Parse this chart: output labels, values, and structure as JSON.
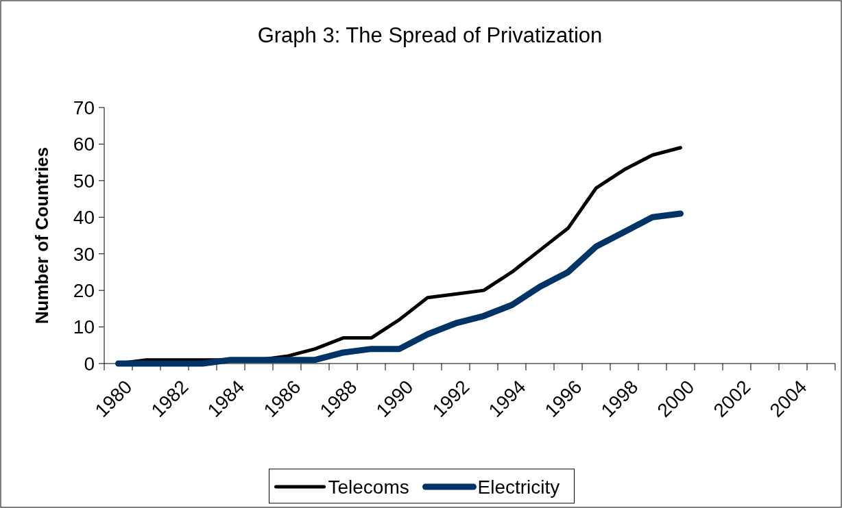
{
  "chart_data": {
    "type": "line",
    "title": "Graph 3: The Spread of Privatization",
    "ylabel": "Number of Countries",
    "categories": [
      "1980",
      null,
      "1982",
      null,
      "1984",
      null,
      "1986",
      null,
      "1988",
      null,
      "1990",
      null,
      "1992",
      null,
      "1994",
      null,
      "1996",
      null,
      "1998",
      null,
      "2000",
      null,
      "2002",
      null,
      "2004",
      null
    ],
    "ylim": [
      0,
      70
    ],
    "yticks": [
      0,
      10,
      20,
      30,
      40,
      50,
      60,
      70
    ],
    "grid": false,
    "legend": "bottom",
    "marker": "none",
    "line_style": "solid",
    "series": [
      {
        "name": "Telecoms",
        "color": "#000000",
        "values": [
          0,
          1,
          1,
          1,
          1,
          1,
          2,
          4,
          7,
          7,
          12,
          18,
          19,
          20,
          25,
          31,
          37,
          48,
          53,
          57,
          59,
          null,
          null,
          null,
          null,
          null
        ]
      },
      {
        "name": "Electricity",
        "color": "#003366",
        "values": [
          0,
          0,
          0,
          0,
          1,
          1,
          1,
          1,
          3,
          4,
          4,
          8,
          11,
          13,
          16,
          21,
          25,
          32,
          36,
          40,
          41,
          null,
          null,
          null,
          null,
          null
        ]
      }
    ]
  }
}
